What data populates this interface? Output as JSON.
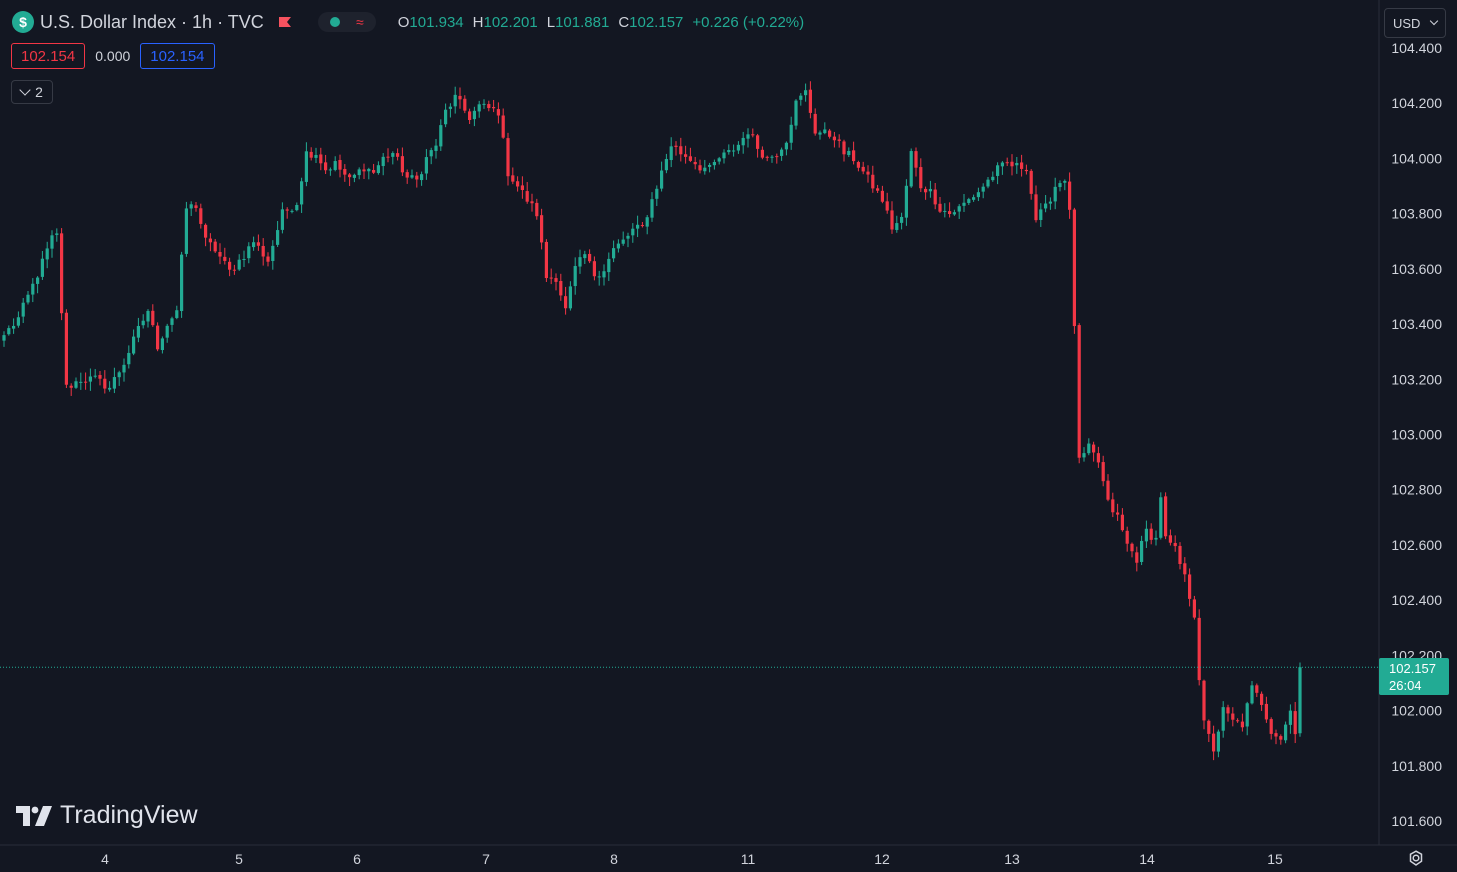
{
  "header": {
    "symbol_icon": "$",
    "title": "U.S. Dollar Index · 1h · TVC",
    "ohlc": [
      {
        "key": "O",
        "value": "101.934"
      },
      {
        "key": "H",
        "value": "102.201"
      },
      {
        "key": "L",
        "value": "101.881"
      },
      {
        "key": "C",
        "value": "102.157"
      }
    ],
    "change": "+0.226 (+0.22%)",
    "icons": [
      "flag-icon",
      "market-status-dot-icon",
      "wave-icon"
    ]
  },
  "quote": {
    "sell": "102.154",
    "spread": "0.000",
    "buy": "102.154"
  },
  "indicators_toggle": {
    "count": "2"
  },
  "currency_select": {
    "value": "USD"
  },
  "logo": {
    "text": "TradingView"
  },
  "colors": {
    "background": "#131722",
    "up": "#22ab94",
    "down": "#f23645",
    "axis_text": "#d1d4dc",
    "buy": "#2962ff"
  },
  "price_tag": {
    "price": "102.157",
    "countdown": "26:04"
  },
  "chart_data": {
    "type": "candlestick",
    "title": "U.S. Dollar Index · 1h · TVC",
    "y_ticks": [
      "104.400",
      "104.200",
      "104.000",
      "103.800",
      "103.600",
      "103.400",
      "103.200",
      "103.000",
      "102.800",
      "102.600",
      "102.400",
      "102.200",
      "102.000",
      "101.800",
      "101.600"
    ],
    "ylim": [
      101.53,
      104.54
    ],
    "x_ticks": [
      "4",
      "5",
      "6",
      "7",
      "8",
      "11",
      "12",
      "13",
      "14",
      "15"
    ],
    "current_price": 102.157,
    "grid": false,
    "anchors": [
      {
        "i": 0,
        "p": 103.36
      },
      {
        "i": 3,
        "p": 103.42
      },
      {
        "i": 7,
        "p": 103.58
      },
      {
        "i": 10,
        "p": 103.71
      },
      {
        "i": 11,
        "p": 103.72
      },
      {
        "i": 13,
        "p": 103.17
      },
      {
        "i": 16,
        "p": 103.2
      },
      {
        "i": 19,
        "p": 103.2
      },
      {
        "i": 22,
        "p": 103.17
      },
      {
        "i": 25,
        "p": 103.26
      },
      {
        "i": 28,
        "p": 103.38
      },
      {
        "i": 30,
        "p": 103.45
      },
      {
        "i": 32,
        "p": 103.32
      },
      {
        "i": 34,
        "p": 103.4
      },
      {
        "i": 36,
        "p": 103.45
      },
      {
        "i": 38,
        "p": 103.82
      },
      {
        "i": 40,
        "p": 103.83
      },
      {
        "i": 42,
        "p": 103.7
      },
      {
        "i": 44,
        "p": 103.67
      },
      {
        "i": 47,
        "p": 103.59
      },
      {
        "i": 50,
        "p": 103.65
      },
      {
        "i": 52,
        "p": 103.7
      },
      {
        "i": 55,
        "p": 103.63
      },
      {
        "i": 58,
        "p": 103.8
      },
      {
        "i": 61,
        "p": 103.84
      },
      {
        "i": 63,
        "p": 104.02
      },
      {
        "i": 65,
        "p": 104.02
      },
      {
        "i": 67,
        "p": 103.96
      },
      {
        "i": 69,
        "p": 103.98
      },
      {
        "i": 72,
        "p": 103.92
      },
      {
        "i": 75,
        "p": 103.97
      },
      {
        "i": 77,
        "p": 103.95
      },
      {
        "i": 79,
        "p": 104.0
      },
      {
        "i": 81,
        "p": 104.02
      },
      {
        "i": 84,
        "p": 103.93
      },
      {
        "i": 86,
        "p": 103.92
      },
      {
        "i": 88,
        "p": 104.0
      },
      {
        "i": 90,
        "p": 104.05
      },
      {
        "i": 92,
        "p": 104.17
      },
      {
        "i": 94,
        "p": 104.22
      },
      {
        "i": 97,
        "p": 104.15
      },
      {
        "i": 99,
        "p": 104.19
      },
      {
        "i": 101,
        "p": 104.18
      },
      {
        "i": 103,
        "p": 104.17
      },
      {
        "i": 105,
        "p": 103.95
      },
      {
        "i": 107,
        "p": 103.9
      },
      {
        "i": 109,
        "p": 103.85
      },
      {
        "i": 111,
        "p": 103.8
      },
      {
        "i": 113,
        "p": 103.57
      },
      {
        "i": 115,
        "p": 103.57
      },
      {
        "i": 117,
        "p": 103.45
      },
      {
        "i": 119,
        "p": 103.6
      },
      {
        "i": 121,
        "p": 103.65
      },
      {
        "i": 123,
        "p": 103.58
      },
      {
        "i": 125,
        "p": 103.6
      },
      {
        "i": 127,
        "p": 103.67
      },
      {
        "i": 129,
        "p": 103.7
      },
      {
        "i": 131,
        "p": 103.74
      },
      {
        "i": 133,
        "p": 103.75
      },
      {
        "i": 135,
        "p": 103.85
      },
      {
        "i": 137,
        "p": 103.95
      },
      {
        "i": 139,
        "p": 104.05
      },
      {
        "i": 141,
        "p": 104.02
      },
      {
        "i": 143,
        "p": 104.0
      },
      {
        "i": 145,
        "p": 103.97
      },
      {
        "i": 147,
        "p": 103.96
      },
      {
        "i": 149,
        "p": 104.0
      },
      {
        "i": 151,
        "p": 104.02
      },
      {
        "i": 153,
        "p": 104.05
      },
      {
        "i": 155,
        "p": 104.1
      },
      {
        "i": 157,
        "p": 104.04
      },
      {
        "i": 159,
        "p": 104.0
      },
      {
        "i": 161,
        "p": 104.02
      },
      {
        "i": 163,
        "p": 104.07
      },
      {
        "i": 165,
        "p": 104.2
      },
      {
        "i": 167,
        "p": 104.24
      },
      {
        "i": 169,
        "p": 104.1
      },
      {
        "i": 171,
        "p": 104.09
      },
      {
        "i": 173,
        "p": 104.08
      },
      {
        "i": 175,
        "p": 104.02
      },
      {
        "i": 177,
        "p": 104.0
      },
      {
        "i": 179,
        "p": 103.95
      },
      {
        "i": 181,
        "p": 103.9
      },
      {
        "i": 183,
        "p": 103.85
      },
      {
        "i": 185,
        "p": 103.75
      },
      {
        "i": 187,
        "p": 103.78
      },
      {
        "i": 189,
        "p": 104.02
      },
      {
        "i": 191,
        "p": 103.9
      },
      {
        "i": 193,
        "p": 103.88
      },
      {
        "i": 195,
        "p": 103.82
      },
      {
        "i": 197,
        "p": 103.8
      },
      {
        "i": 199,
        "p": 103.82
      },
      {
        "i": 201,
        "p": 103.85
      },
      {
        "i": 203,
        "p": 103.88
      },
      {
        "i": 205,
        "p": 103.92
      },
      {
        "i": 207,
        "p": 103.96
      },
      {
        "i": 209,
        "p": 103.98
      },
      {
        "i": 211,
        "p": 103.97
      },
      {
        "i": 213,
        "p": 103.97
      },
      {
        "i": 215,
        "p": 103.78
      },
      {
        "i": 217,
        "p": 103.82
      },
      {
        "i": 219,
        "p": 103.9
      },
      {
        "i": 221,
        "p": 103.93
      },
      {
        "i": 222,
        "p": 103.8
      },
      {
        "i": 223,
        "p": 103.4
      },
      {
        "i": 224,
        "p": 102.9
      },
      {
        "i": 226,
        "p": 102.95
      },
      {
        "i": 228,
        "p": 102.9
      },
      {
        "i": 230,
        "p": 102.75
      },
      {
        "i": 232,
        "p": 102.7
      },
      {
        "i": 234,
        "p": 102.6
      },
      {
        "i": 236,
        "p": 102.55
      },
      {
        "i": 238,
        "p": 102.65
      },
      {
        "i": 240,
        "p": 102.62
      },
      {
        "i": 241,
        "p": 102.78
      },
      {
        "i": 242,
        "p": 102.62
      },
      {
        "i": 244,
        "p": 102.58
      },
      {
        "i": 246,
        "p": 102.48
      },
      {
        "i": 248,
        "p": 102.35
      },
      {
        "i": 249,
        "p": 102.12
      },
      {
        "i": 250,
        "p": 101.95
      },
      {
        "i": 252,
        "p": 101.86
      },
      {
        "i": 254,
        "p": 102.0
      },
      {
        "i": 256,
        "p": 101.96
      },
      {
        "i": 258,
        "p": 101.95
      },
      {
        "i": 260,
        "p": 102.08
      },
      {
        "i": 262,
        "p": 102.03
      },
      {
        "i": 264,
        "p": 101.93
      },
      {
        "i": 266,
        "p": 101.9
      },
      {
        "i": 268,
        "p": 102.0
      },
      {
        "i": 269,
        "p": 101.93
      },
      {
        "i": 270,
        "p": 102.157
      }
    ]
  }
}
